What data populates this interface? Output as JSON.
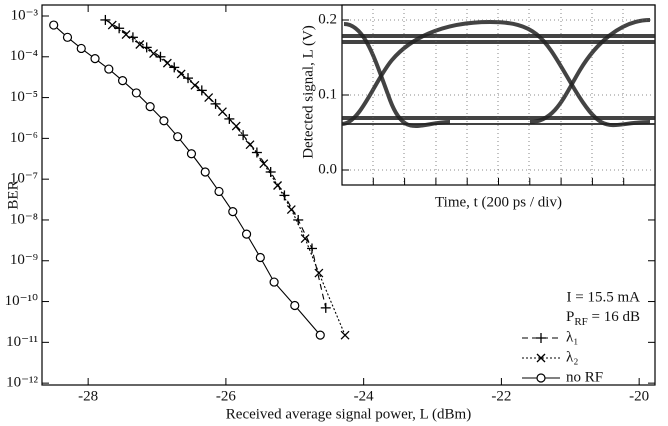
{
  "chart_data": [
    {
      "type": "line",
      "xlabel": "Received average signal power, L (dBm)",
      "ylabel": "BER",
      "xlim": [
        -28.67,
        -19.77
      ],
      "xticks": [
        -28,
        -26,
        -24,
        -22,
        -20
      ],
      "ylim": [
        9e-13,
        0.00186
      ],
      "log_y": true,
      "yticks": [
        {
          "value": 0.001,
          "label": "10⁻³"
        },
        {
          "value": 0.0001,
          "label": "10⁻⁴"
        },
        {
          "value": 1e-05,
          "label": "10⁻⁵"
        },
        {
          "value": 1e-06,
          "label": "10⁻⁶"
        },
        {
          "value": 1e-07,
          "label": "10⁻⁷"
        },
        {
          "value": 1e-08,
          "label": "10⁻⁸"
        },
        {
          "value": 1e-09,
          "label": "10⁻⁹"
        },
        {
          "value": 1e-10,
          "label": "10⁻¹⁰"
        },
        {
          "value": 1e-11,
          "label": "10⁻¹¹"
        },
        {
          "value": 1e-12,
          "label": "10⁻¹²"
        }
      ],
      "annotations": [
        "I = 15.5 mA",
        [
          "P",
          "RF",
          " = 16 dB"
        ]
      ],
      "series": [
        {
          "name": "λ₁",
          "color": "#000",
          "marker": "plus",
          "dash": "6,4",
          "x": [
            -27.75,
            -27.55,
            -27.35,
            -27.15,
            -26.95,
            -26.75,
            -26.55,
            -26.35,
            -26.15,
            -25.95,
            -25.75,
            -25.55,
            -25.35,
            -25.15,
            -24.95,
            -24.75,
            -24.55
          ],
          "values": [
            0.0008,
            0.0005,
            0.0003,
            0.00017,
            0.0001,
            5.5e-05,
            3e-05,
            1.5e-05,
            7e-06,
            3e-06,
            1.2e-06,
            4.5e-07,
            1.5e-07,
            4e-08,
            1e-08,
            2e-09,
            7e-11
          ]
        },
        {
          "name": "λ₂",
          "color": "#000",
          "marker": "x",
          "dash": "2,2",
          "x": [
            -27.65,
            -27.45,
            -27.25,
            -27.05,
            -26.85,
            -26.65,
            -26.45,
            -26.25,
            -26.05,
            -25.85,
            -25.65,
            -25.45,
            -25.25,
            -25.05,
            -24.85,
            -24.65,
            -24.27
          ],
          "values": [
            0.0006,
            0.00035,
            0.0002,
            0.00012,
            7e-05,
            3.8e-05,
            2e-05,
            1e-05,
            4.5e-06,
            2e-06,
            7e-07,
            2.4e-07,
            7e-08,
            1.8e-08,
            3.5e-09,
            5e-10,
            1.5e-11
          ]
        },
        {
          "name": "no RF",
          "color": "#000",
          "marker": "circle",
          "dash": null,
          "x": [
            -28.5,
            -28.3,
            -28.1,
            -27.9,
            -27.7,
            -27.5,
            -27.3,
            -27.1,
            -26.9,
            -26.7,
            -26.5,
            -26.3,
            -26.1,
            -25.9,
            -25.7,
            -25.5,
            -25.3,
            -25.0,
            -24.63
          ],
          "values": [
            0.0006,
            0.0003,
            0.00016,
            9e-05,
            5e-05,
            2.6e-05,
            1.3e-05,
            6e-06,
            2.7e-06,
            1.1e-06,
            4.2e-07,
            1.5e-07,
            5e-08,
            1.6e-08,
            4.5e-09,
            1.2e-09,
            3e-10,
            8e-11,
            1.5e-11
          ]
        }
      ]
    },
    {
      "type": "eye",
      "xlabel": "Time, t (200 ps / div)",
      "ylabel": "Detected signal, L (V)",
      "ylim": [
        -0.02,
        0.22
      ],
      "yticks": [
        {
          "value": 0,
          "label": "0.0"
        },
        0.1,
        0.2
      ],
      "grid": true
    }
  ]
}
